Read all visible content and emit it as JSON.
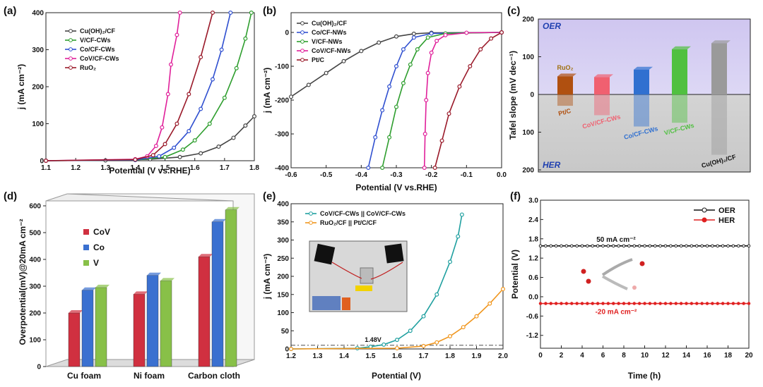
{
  "chart_data": [
    {
      "panel_label": "(a)",
      "type": "line",
      "xlabel": "Potential (V vs.RHE)",
      "ylabel": "j (mA cm⁻²)",
      "xlim": [
        1.1,
        1.8
      ],
      "ylim": [
        0,
        400
      ],
      "xticks": [
        "1.1",
        "1.2",
        "1.3",
        "1.4",
        "1.5",
        "1.6",
        "1.7",
        "1.8"
      ],
      "yticks": [
        "0",
        "100",
        "200",
        "300",
        "400"
      ],
      "legend": [
        "Cu(OH)₂/CF",
        "V/CF-CWs",
        "Co/CF-CWs",
        "CoV/CF-CWs",
        "RuO₂"
      ],
      "series": [
        {
          "name": "Cu(OH)₂/CF",
          "color": "#444444",
          "points": [
            [
              1.1,
              0
            ],
            [
              1.3,
              1
            ],
            [
              1.45,
              4
            ],
            [
              1.55,
              10
            ],
            [
              1.62,
              20
            ],
            [
              1.68,
              38
            ],
            [
              1.73,
              62
            ],
            [
              1.77,
              95
            ],
            [
              1.8,
              120
            ]
          ]
        },
        {
          "name": "V/CF-CWs",
          "color": "#2e9e2e",
          "points": [
            [
              1.1,
              0
            ],
            [
              1.4,
              2
            ],
            [
              1.5,
              10
            ],
            [
              1.56,
              30
            ],
            [
              1.6,
              55
            ],
            [
              1.65,
              100
            ],
            [
              1.7,
              170
            ],
            [
              1.74,
              250
            ],
            [
              1.77,
              330
            ],
            [
              1.79,
              400
            ]
          ]
        },
        {
          "name": "Co/CF-CWs",
          "color": "#3050d0",
          "points": [
            [
              1.1,
              0
            ],
            [
              1.4,
              2
            ],
            [
              1.48,
              12
            ],
            [
              1.53,
              35
            ],
            [
              1.58,
              80
            ],
            [
              1.62,
              140
            ],
            [
              1.66,
              220
            ],
            [
              1.69,
              300
            ],
            [
              1.72,
              400
            ]
          ]
        },
        {
          "name": "CoV/CF-CWs",
          "color": "#e0209a",
          "points": [
            [
              1.1,
              0
            ],
            [
              1.4,
              4
            ],
            [
              1.44,
              12
            ],
            [
              1.47,
              40
            ],
            [
              1.49,
              90
            ],
            [
              1.51,
              180
            ],
            [
              1.52,
              260
            ],
            [
              1.54,
              340
            ],
            [
              1.55,
              400
            ]
          ]
        },
        {
          "name": "RuO₂",
          "color": "#9a1a2a",
          "points": [
            [
              1.1,
              0
            ],
            [
              1.4,
              3
            ],
            [
              1.46,
              15
            ],
            [
              1.5,
              45
            ],
            [
              1.54,
              100
            ],
            [
              1.58,
              180
            ],
            [
              1.62,
              280
            ],
            [
              1.66,
              400
            ]
          ]
        }
      ]
    },
    {
      "panel_label": "(b)",
      "type": "line",
      "xlabel": "Potential (V vs.RHE)",
      "ylabel": "j (mA cm⁻²)",
      "xlim": [
        -0.6,
        0.0
      ],
      "ylim": [
        -400,
        20
      ],
      "xticks": [
        "-0.6",
        "-0.5",
        "-0.4",
        "-0.3",
        "-0.2",
        "-0.1",
        "0.0"
      ],
      "yticks": [
        "0",
        "-100",
        "-200",
        "-300",
        "-400"
      ],
      "legend": [
        "Cu(OH)₂/CF",
        "Co/CF-NWs",
        "V/CF-NWs",
        "CoV/CF-NWs",
        "Pt/C"
      ],
      "series": [
        {
          "name": "Cu(OH)₂/CF",
          "color": "#444444",
          "points": [
            [
              -0.6,
              -190
            ],
            [
              -0.55,
              -155
            ],
            [
              -0.5,
              -120
            ],
            [
              -0.45,
              -85
            ],
            [
              -0.4,
              -55
            ],
            [
              -0.35,
              -30
            ],
            [
              -0.3,
              -12
            ],
            [
              -0.25,
              -4
            ],
            [
              -0.2,
              -1
            ],
            [
              0.0,
              0
            ]
          ]
        },
        {
          "name": "Co/CF-NWs",
          "color": "#3050d0",
          "points": [
            [
              -0.38,
              -400
            ],
            [
              -0.36,
              -310
            ],
            [
              -0.34,
              -230
            ],
            [
              -0.32,
              -160
            ],
            [
              -0.3,
              -100
            ],
            [
              -0.28,
              -50
            ],
            [
              -0.25,
              -15
            ],
            [
              -0.2,
              -3
            ],
            [
              0.0,
              0
            ]
          ]
        },
        {
          "name": "V/CF-NWs",
          "color": "#2e9e2e",
          "points": [
            [
              -0.34,
              -400
            ],
            [
              -0.32,
              -310
            ],
            [
              -0.3,
              -220
            ],
            [
              -0.28,
              -150
            ],
            [
              -0.26,
              -95
            ],
            [
              -0.24,
              -50
            ],
            [
              -0.21,
              -15
            ],
            [
              -0.16,
              -3
            ],
            [
              0.0,
              0
            ]
          ]
        },
        {
          "name": "CoV/CF-NWs",
          "color": "#e0209a",
          "points": [
            [
              -0.22,
              -400
            ],
            [
              -0.218,
              -300
            ],
            [
              -0.215,
              -200
            ],
            [
              -0.21,
              -120
            ],
            [
              -0.2,
              -60
            ],
            [
              -0.185,
              -25
            ],
            [
              -0.16,
              -8
            ],
            [
              -0.1,
              -1
            ],
            [
              0.0,
              0
            ]
          ]
        },
        {
          "name": "Pt/C",
          "color": "#9a1a2a",
          "points": [
            [
              -0.19,
              -400
            ],
            [
              -0.17,
              -320
            ],
            [
              -0.15,
              -240
            ],
            [
              -0.12,
              -160
            ],
            [
              -0.09,
              -100
            ],
            [
              -0.06,
              -50
            ],
            [
              -0.03,
              -18
            ],
            [
              0.0,
              0
            ]
          ]
        }
      ]
    },
    {
      "panel_label": "(c)",
      "type": "bar",
      "ylabel": "Tafel slope (mV dec⁻¹)",
      "region_labels": {
        "top": "OER",
        "bottom": "HER"
      },
      "yticks": [
        "200",
        "100",
        "0",
        "100",
        "200"
      ],
      "categories": [
        "RuO₂ / Pt/C",
        "CoV/CF-CWs",
        "Co/CF-CWs",
        "V/CF-CWs",
        "Cu(OH)₂/CF"
      ],
      "top_label": "RuO₂",
      "bottom_labels": [
        "Pt/C",
        "CoV/CF-CWs",
        "Co/CF-CWs",
        "V/CF-CWs",
        "Cu(OH)₂/CF"
      ],
      "series": [
        {
          "name": "OER",
          "values": [
            48,
            46,
            66,
            120,
            136
          ]
        },
        {
          "name": "HER",
          "values": [
            30,
            55,
            85,
            75,
            160
          ]
        }
      ],
      "colors": [
        "#b05010",
        "#f06070",
        "#3070d0",
        "#50c040",
        "#9a9a9a"
      ]
    },
    {
      "panel_label": "(d)",
      "type": "bar",
      "ylabel": "Overpotential(mV)@20mA cm⁻²",
      "ylim": [
        0,
        600
      ],
      "yticks": [
        "0",
        "100",
        "200",
        "300",
        "400",
        "500",
        "600"
      ],
      "categories": [
        "Cu foam",
        "Ni foam",
        "Carbon  cloth"
      ],
      "series": [
        {
          "name": "CoV",
          "color": "#d03040",
          "values": [
            200,
            270,
            410
          ]
        },
        {
          "name": "Co",
          "color": "#3a70d0",
          "values": [
            285,
            340,
            540
          ]
        },
        {
          "name": "V",
          "color": "#88c048",
          "values": [
            295,
            320,
            585
          ]
        }
      ]
    },
    {
      "panel_label": "(e)",
      "type": "line",
      "xlabel": "Potential (V)",
      "ylabel": "j (mA cm⁻²)",
      "xlim": [
        1.2,
        2.0
      ],
      "ylim": [
        0,
        400
      ],
      "xticks": [
        "1.2",
        "1.3",
        "1.4",
        "1.5",
        "1.6",
        "1.7",
        "1.8",
        "1.9",
        "2.0"
      ],
      "yticks": [
        "0",
        "50",
        "100",
        "150",
        "200",
        "250",
        "300",
        "350",
        "400"
      ],
      "annotation": "1.48V",
      "legend": [
        "CoV/CF-CWs || CoV/CF-CWs",
        "RuO₂/CF || Pt/C/CF"
      ],
      "series": [
        {
          "name": "CoV/CF-CWs || CoV/CF-CWs",
          "color": "#20a0a0",
          "points": [
            [
              1.2,
              0
            ],
            [
              1.45,
              2
            ],
            [
              1.5,
              6
            ],
            [
              1.55,
              12
            ],
            [
              1.6,
              25
            ],
            [
              1.65,
              50
            ],
            [
              1.7,
              90
            ],
            [
              1.75,
              150
            ],
            [
              1.8,
              240
            ],
            [
              1.83,
              310
            ],
            [
              1.845,
              370
            ]
          ]
        },
        {
          "name": "RuO₂/CF || Pt/C/CF",
          "color": "#f0961e",
          "points": [
            [
              1.2,
              0
            ],
            [
              1.6,
              2
            ],
            [
              1.7,
              8
            ],
            [
              1.75,
              18
            ],
            [
              1.8,
              35
            ],
            [
              1.85,
              60
            ],
            [
              1.9,
              90
            ],
            [
              1.95,
              125
            ],
            [
              2.0,
              165
            ]
          ]
        }
      ]
    },
    {
      "panel_label": "(f)",
      "type": "line",
      "xlabel": "Time (h)",
      "ylabel": "Potential (V)",
      "xlim": [
        0,
        20
      ],
      "ylim": [
        -1.6,
        3.0
      ],
      "xticks": [
        "0",
        "2",
        "4",
        "6",
        "8",
        "10",
        "12",
        "14",
        "16",
        "18",
        "20"
      ],
      "yticks": [
        "3.0",
        "2.4",
        "1.8",
        "1.2",
        "0.6",
        "0.0",
        "-0.6",
        "-1.2"
      ],
      "annotations": [
        "50 mA cm⁻²",
        "-20 mA cm⁻²"
      ],
      "legend": [
        "OER",
        "HER"
      ],
      "series": [
        {
          "name": "OER",
          "color": "#111111",
          "constant": 1.58
        },
        {
          "name": "HER",
          "color": "#e02020",
          "constant": -0.21
        }
      ]
    }
  ]
}
